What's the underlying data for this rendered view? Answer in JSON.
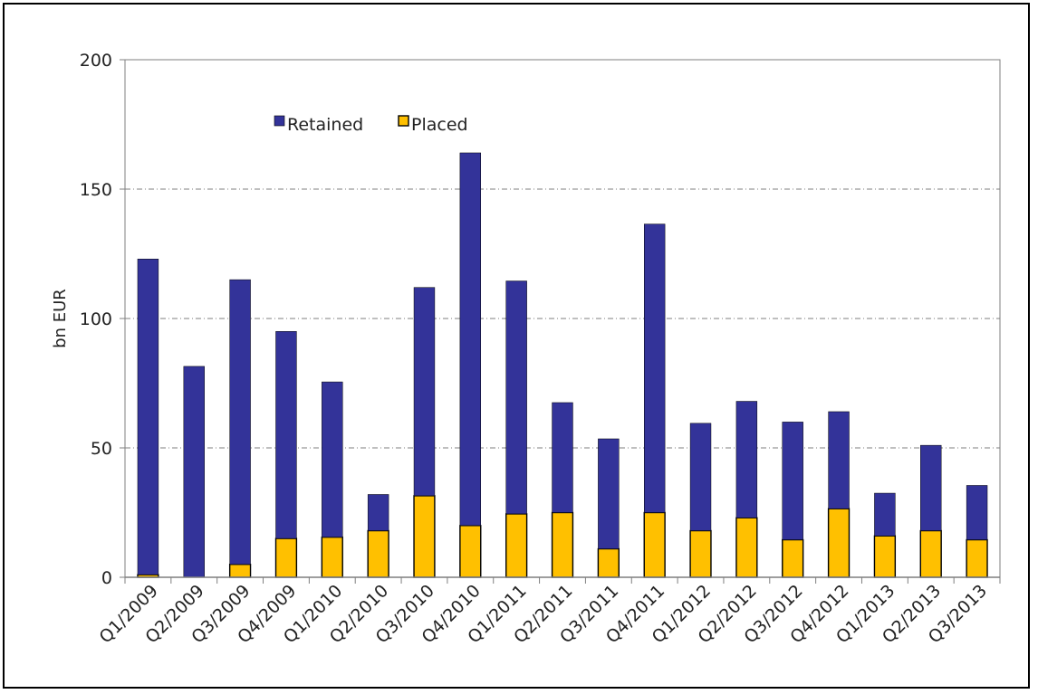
{
  "chart_data": {
    "type": "bar",
    "stacked": true,
    "title": "",
    "xlabel": "",
    "ylabel": "bn EUR",
    "ylim": [
      0,
      200
    ],
    "yticks": [
      0,
      50,
      100,
      150,
      200
    ],
    "grid": true,
    "legend_position": "top-left",
    "categories": [
      "Q1/2009",
      "Q2/2009",
      "Q3/2009",
      "Q4/2009",
      "Q1/2010",
      "Q2/2010",
      "Q3/2010",
      "Q4/2010",
      "Q1/2011",
      "Q2/2011",
      "Q3/2011",
      "Q4/2011",
      "Q1/2012",
      "Q2/2012",
      "Q3/2012",
      "Q4/2012",
      "Q1/2013",
      "Q2/2013",
      "Q3/2013"
    ],
    "series": [
      {
        "name": "Placed",
        "color": "#FFC000",
        "values": [
          1,
          0,
          5,
          15,
          15.5,
          18,
          31.5,
          20,
          24.5,
          25,
          11,
          25,
          18,
          23,
          14.5,
          26.5,
          16,
          18,
          14.5
        ]
      },
      {
        "name": "Retained",
        "color": "#333399",
        "values": [
          122,
          81.5,
          110,
          80,
          60,
          14,
          80.5,
          144,
          90,
          42.5,
          42.5,
          111.5,
          41.5,
          45,
          45.5,
          37.5,
          16.5,
          33,
          21
        ]
      }
    ],
    "legend_order": [
      "Retained",
      "Placed"
    ]
  }
}
